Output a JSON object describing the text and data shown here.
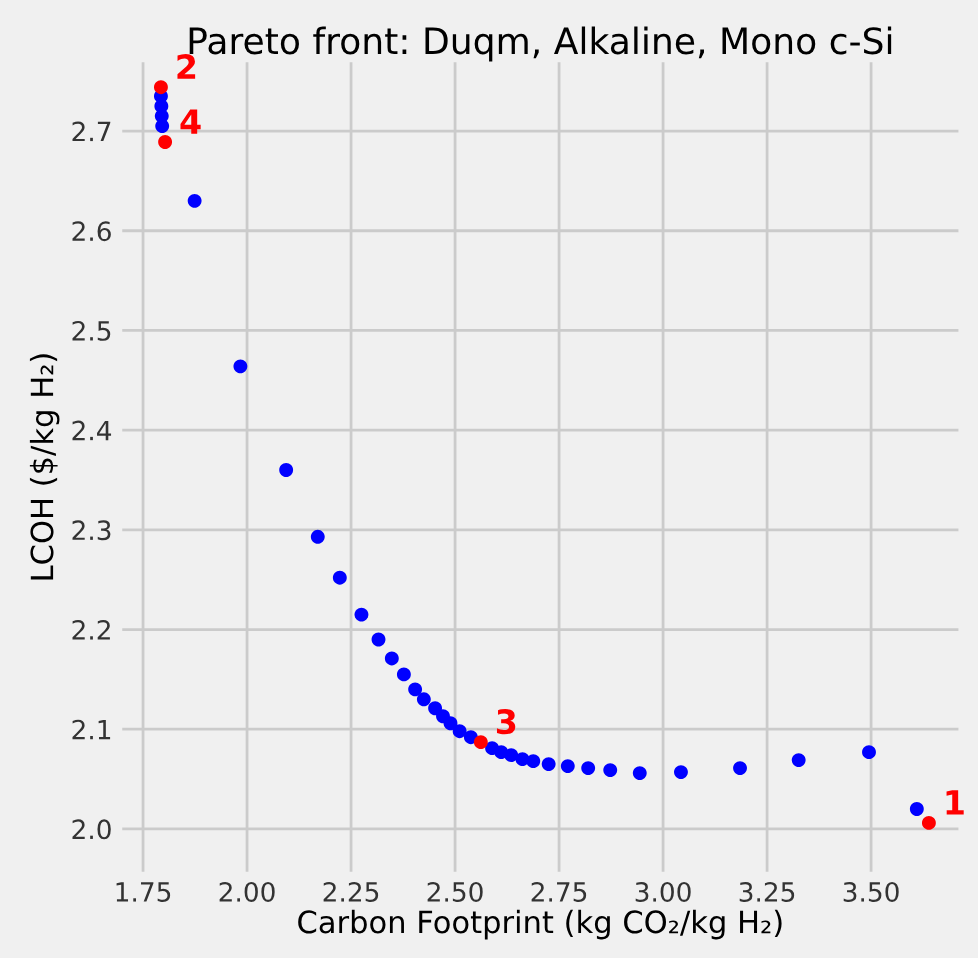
{
  "chart_data": {
    "type": "scatter",
    "title": "Pareto front: Duqm, Alkaline, Mono c-Si",
    "xlabel": "Carbon Footprint (kg CO₂/kg H₂)",
    "ylabel": "LCOH ($/kg H₂)",
    "series": [
      {
        "color": "#0000ff",
        "x": [
          1.793,
          1.794,
          1.795,
          1.796,
          1.874,
          1.984,
          2.094,
          2.17,
          2.223,
          2.275,
          2.316,
          2.348,
          2.377,
          2.404,
          2.425,
          2.452,
          2.471,
          2.489,
          2.511,
          2.538,
          2.589,
          2.611,
          2.635,
          2.662,
          2.688,
          2.725,
          2.771,
          2.82,
          2.873,
          2.944,
          3.043,
          3.185,
          3.326,
          3.495,
          3.61
        ],
        "values": [
          2.735,
          2.725,
          2.715,
          2.705,
          2.63,
          2.464,
          2.36,
          2.293,
          2.252,
          2.215,
          2.19,
          2.171,
          2.155,
          2.14,
          2.13,
          2.121,
          2.113,
          2.106,
          2.098,
          2.092,
          2.081,
          2.077,
          2.074,
          2.07,
          2.068,
          2.065,
          2.063,
          2.061,
          2.059,
          2.056,
          2.057,
          2.061,
          2.069,
          2.077,
          2.02
        ]
      },
      {
        "color": "#ff0000",
        "x": [
          3.639,
          1.793,
          2.562,
          1.803
        ],
        "values": [
          2.006,
          2.744,
          2.087,
          2.689
        ]
      }
    ],
    "annotations": [
      {
        "text": "1",
        "x": 3.639,
        "y": 2.006
      },
      {
        "text": "2",
        "x": 1.793,
        "y": 2.744
      },
      {
        "text": "3",
        "x": 2.562,
        "y": 2.087
      },
      {
        "text": "4",
        "x": 1.803,
        "y": 2.689
      }
    ],
    "xlim": [
      1.7,
      3.71
    ],
    "ylim": [
      1.957,
      2.769
    ],
    "xticks": [
      {
        "value": 1.75,
        "label": "1.75"
      },
      {
        "value": 2.0,
        "label": "2.00"
      },
      {
        "value": 2.25,
        "label": "2.25"
      },
      {
        "value": 2.5,
        "label": "2.50"
      },
      {
        "value": 2.75,
        "label": "2.75"
      },
      {
        "value": 3.0,
        "label": "3.00"
      },
      {
        "value": 3.25,
        "label": "3.25"
      },
      {
        "value": 3.5,
        "label": "3.50"
      }
    ],
    "yticks": [
      {
        "value": 2.0,
        "label": "2.0"
      },
      {
        "value": 2.1,
        "label": "2.1"
      },
      {
        "value": 2.2,
        "label": "2.2"
      },
      {
        "value": 2.3,
        "label": "2.3"
      },
      {
        "value": 2.4,
        "label": "2.4"
      },
      {
        "value": 2.5,
        "label": "2.5"
      },
      {
        "value": 2.6,
        "label": "2.6"
      },
      {
        "value": 2.7,
        "label": "2.7"
      }
    ],
    "grid": true,
    "marker": "circle"
  }
}
